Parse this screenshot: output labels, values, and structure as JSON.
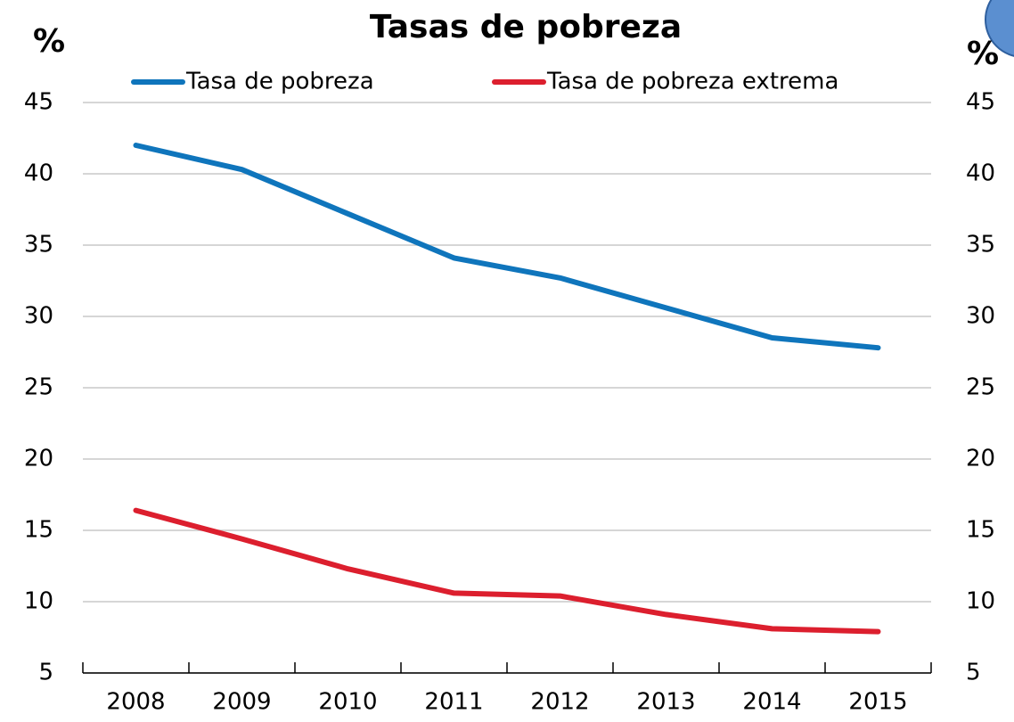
{
  "chart_data": {
    "type": "line",
    "title": "Tasas de pobreza",
    "y_label": "%",
    "y2_label": "%",
    "categories": [
      "2008",
      "2009",
      "2010",
      "2011",
      "2012",
      "2013",
      "2014",
      "2015"
    ],
    "series": [
      {
        "name": "Tasa de pobreza",
        "color": "#0f75bc",
        "values": [
          42.0,
          40.3,
          37.2,
          34.1,
          32.7,
          30.6,
          28.5,
          27.8
        ]
      },
      {
        "name": "Tasa de pobreza extrema",
        "color": "#dc1f2e",
        "values": [
          16.4,
          14.4,
          12.3,
          10.6,
          10.4,
          9.1,
          8.1,
          7.9
        ]
      }
    ],
    "ylim": [
      5,
      45
    ],
    "yticks": [
      5,
      10,
      15,
      20,
      25,
      30,
      35,
      40,
      45
    ],
    "y2lim": [
      5,
      45
    ],
    "y2ticks": [
      5,
      10,
      15,
      20,
      25,
      30,
      35,
      40,
      45
    ],
    "grid": true
  }
}
